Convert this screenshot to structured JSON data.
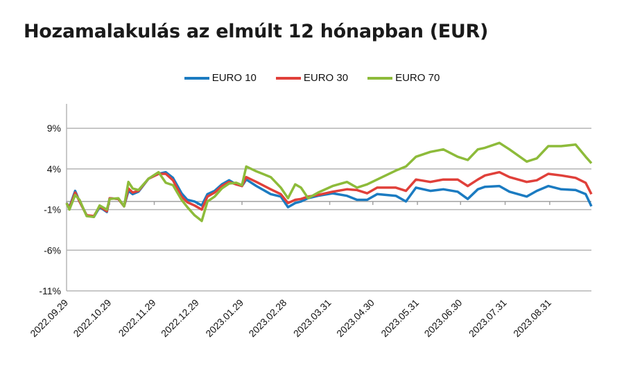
{
  "title": "Hozamalakulás az elmúlt 12 hónapban (EUR)",
  "chart_data": {
    "type": "line",
    "title": "Hozamalakulás az elmúlt 12 hónapban (EUR)",
    "xlabel": "",
    "ylabel": "",
    "ylim": [
      -11,
      12
    ],
    "xlim": [
      "2022-09-29",
      "2023-09-29"
    ],
    "y_ticks": [
      9,
      4,
      -1,
      -6,
      -11
    ],
    "y_tick_labels": [
      "9%",
      "4%",
      "-1%",
      "-6%",
      "-11%"
    ],
    "x_ticks": [
      "2022-09-29",
      "2022-10-29",
      "2022-11-29",
      "2022-12-29",
      "2023-01-29",
      "2023-02-28",
      "2023-03-31",
      "2023-04-30",
      "2023-05-31",
      "2023-06-30",
      "2023-07-31",
      "2023-08-31"
    ],
    "x_tick_labels": [
      "2022.09.29",
      "2022.10.29",
      "2022.11.29",
      "2022.12.29",
      "2023.01.29",
      "2023.02.28",
      "2023.03.31",
      "2023.04.30",
      "2023.05.31",
      "2023.06.30",
      "2023.07.31",
      "2023.08.31"
    ],
    "grid": true,
    "legend_position": "top",
    "x": [
      "2022-09-29",
      "2022-10-01",
      "2022-10-05",
      "2022-10-08",
      "2022-10-13",
      "2022-10-18",
      "2022-10-22",
      "2022-10-27",
      "2022-10-29",
      "2022-11-04",
      "2022-11-08",
      "2022-11-11",
      "2022-11-14",
      "2022-11-18",
      "2022-11-25",
      "2022-12-02",
      "2022-12-07",
      "2022-12-12",
      "2022-12-18",
      "2022-12-22",
      "2022-12-27",
      "2023-01-01",
      "2023-01-05",
      "2023-01-10",
      "2023-01-15",
      "2023-01-20",
      "2023-01-25",
      "2023-01-29",
      "2023-02-01",
      "2023-02-08",
      "2023-02-18",
      "2023-02-25",
      "2023-03-02",
      "2023-03-07",
      "2023-03-11",
      "2023-03-16",
      "2023-03-23",
      "2023-04-02",
      "2023-04-12",
      "2023-04-19",
      "2023-04-26",
      "2023-05-03",
      "2023-05-16",
      "2023-05-23",
      "2023-05-30",
      "2023-06-09",
      "2023-06-18",
      "2023-06-28",
      "2023-07-05",
      "2023-07-12",
      "2023-07-17",
      "2023-07-27",
      "2023-08-03",
      "2023-08-15",
      "2023-08-22",
      "2023-08-30",
      "2023-09-08",
      "2023-09-18",
      "2023-09-25",
      "2023-09-29"
    ],
    "series": [
      {
        "name": "EURO 10",
        "color": "#1b7bc1",
        "values": [
          -0.2,
          -0.7,
          1.3,
          0,
          -1.7,
          -1.9,
          -0.7,
          -1.3,
          0.4,
          0.3,
          -0.6,
          1.3,
          0.9,
          1.2,
          2.8,
          3.4,
          3.6,
          2.9,
          1.0,
          0.2,
          0,
          -0.5,
          0.9,
          1.3,
          2.1,
          2.6,
          2.1,
          1.9,
          2.7,
          1.9,
          0.9,
          0.6,
          -0.7,
          -0.2,
          0,
          0.4,
          0.7,
          1.0,
          0.7,
          0.2,
          0.2,
          0.9,
          0.7,
          0,
          1.7,
          1.3,
          1.5,
          1.2,
          0.3,
          1.5,
          1.8,
          1.9,
          1.2,
          0.6,
          1.3,
          1.9,
          1.5,
          1.4,
          0.9,
          -0.6
        ]
      },
      {
        "name": "EURO 30",
        "color": "#e0403a",
        "values": [
          -0.2,
          -0.8,
          1.1,
          0,
          -1.7,
          -1.8,
          -0.6,
          -1.2,
          0.4,
          0.3,
          -0.6,
          1.6,
          1.1,
          1.3,
          2.8,
          3.4,
          3.4,
          2.6,
          0.6,
          -0.1,
          -0.5,
          -1.0,
          0.6,
          1.1,
          1.9,
          2.4,
          2.1,
          1.9,
          3.0,
          2.4,
          1.5,
          0.9,
          -0.2,
          0.2,
          0.3,
          0.6,
          0.8,
          1.2,
          1.5,
          1.4,
          1.0,
          1.7,
          1.7,
          1.3,
          2.7,
          2.4,
          2.7,
          2.7,
          1.9,
          2.7,
          3.2,
          3.6,
          3.0,
          2.4,
          2.6,
          3.4,
          3.2,
          2.9,
          2.3,
          0.9
        ]
      },
      {
        "name": "EURO 70",
        "color": "#8dbb3a",
        "values": [
          -0.2,
          -1.0,
          0.8,
          0.2,
          -1.8,
          -1.9,
          -0.5,
          -1.0,
          0.3,
          0.4,
          -0.6,
          2.4,
          1.6,
          1.4,
          2.8,
          3.6,
          2.3,
          2.0,
          0.2,
          -0.7,
          -1.7,
          -2.4,
          0,
          0.6,
          1.6,
          2.2,
          2.3,
          2.0,
          4.3,
          3.7,
          3.0,
          1.7,
          0.4,
          2.1,
          1.7,
          0.4,
          1.1,
          1.9,
          2.4,
          1.7,
          2.1,
          2.7,
          3.8,
          4.3,
          5.5,
          6.1,
          6.4,
          5.5,
          5.1,
          6.4,
          6.6,
          7.2,
          6.4,
          4.9,
          5.3,
          6.8,
          6.8,
          7.0,
          5.5,
          4.7
        ]
      }
    ]
  }
}
